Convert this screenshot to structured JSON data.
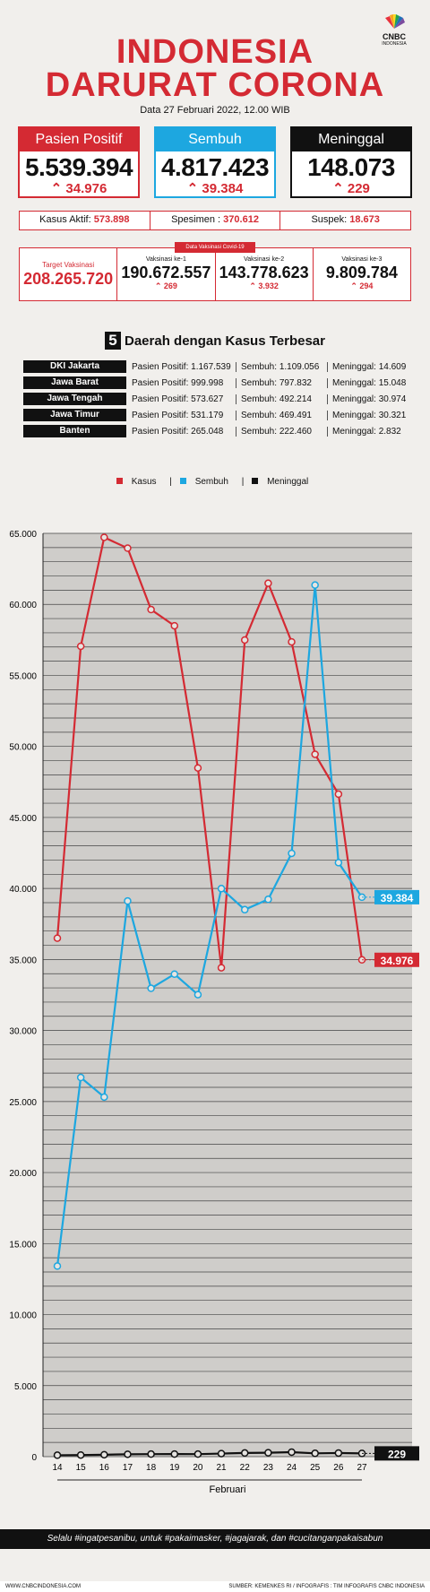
{
  "header": {
    "title_line1": "INDONESIA",
    "title_line2": "DARURAT CORONA",
    "date": "Data 27 Februari 2022, 12.00 WIB",
    "logo_text": "CNBC",
    "logo_sub": "INDONESIA"
  },
  "cards": [
    {
      "label": "Pasien Positif",
      "value": "5.539.394",
      "increase": "34.976",
      "color": "#d42a33"
    },
    {
      "label": "Sembuh",
      "value": "4.817.423",
      "increase": "39.384",
      "color": "#1da7e0"
    },
    {
      "label": "Meninggal",
      "value": "148.073",
      "increase": "229",
      "color": "#111111"
    }
  ],
  "stats": {
    "kasus_aktif_label": "Kasus Aktif:",
    "kasus_aktif": "573.898",
    "spesimen_label": "Spesimen :",
    "spesimen": "370.612",
    "suspek_label": "Suspek:",
    "suspek": "18.673"
  },
  "vaccination": {
    "header": "Data Vaksinasi Covid-19",
    "target_label": "Target Vaksinasi",
    "target": "208.265.720",
    "items": [
      {
        "label": "Vaksinasi ke-1",
        "value": "190.672.557",
        "increase": "269"
      },
      {
        "label": "Vaksinasi ke-2",
        "value": "143.778.623",
        "increase": "3.932"
      },
      {
        "label": "Vaksinasi ke-3",
        "value": "9.809.784",
        "increase": "294"
      }
    ]
  },
  "regions": {
    "number": "5",
    "title": "Daerah dengan Kasus Terbesar",
    "rows": [
      {
        "name": "DKI Jakarta",
        "positif_label": "Pasien Positif:",
        "positif": "1.167.539",
        "sembuh_label": "Sembuh:",
        "sembuh": "1.109.056",
        "meninggal_label": "Meninggal:",
        "meninggal": "14.609"
      },
      {
        "name": "Jawa Barat",
        "positif_label": "Pasien Positif:",
        "positif": "999.998",
        "sembuh_label": "Sembuh:",
        "sembuh": "797.832",
        "meninggal_label": "Meninggal:",
        "meninggal": "15.048"
      },
      {
        "name": "Jawa Tengah",
        "positif_label": "Pasien Positif:",
        "positif": "573.627",
        "sembuh_label": "Sembuh:",
        "sembuh": "492.214",
        "meninggal_label": "Meninggal:",
        "meninggal": "30.974"
      },
      {
        "name": "Jawa Timur",
        "positif_label": "Pasien Positif:",
        "positif": "531.179",
        "sembuh_label": "Sembuh:",
        "sembuh": "469.491",
        "meninggal_label": "Meninggal:",
        "meninggal": "30.321"
      },
      {
        "name": "Banten",
        "positif_label": "Pasien Positif:",
        "positif": "265.048",
        "sembuh_label": "Sembuh:",
        "sembuh": "222.460",
        "meninggal_label": "Meninggal:",
        "meninggal": "2.832"
      }
    ]
  },
  "chart_data": {
    "type": "line",
    "x": [
      "14",
      "15",
      "16",
      "17",
      "18",
      "19",
      "20",
      "21",
      "22",
      "23",
      "24",
      "25",
      "26",
      "27"
    ],
    "xlabel": "Februari",
    "ylim": [
      0,
      65000
    ],
    "yticks": [
      0,
      5000,
      10000,
      15000,
      20000,
      25000,
      30000,
      35000,
      40000,
      45000,
      50000,
      55000,
      60000,
      65000
    ],
    "ytick_labels": [
      "0",
      "5.000",
      "10.000",
      "15.000",
      "20.000",
      "25.000",
      "30.000",
      "35.000",
      "40.000",
      "45.000",
      "50.000",
      "55.000",
      "60.000",
      "65.000"
    ],
    "series": [
      {
        "name": "Kasus",
        "color": "#d42a33",
        "values": [
          36501,
          57049,
          64718,
          63956,
          59635,
          58495,
          48484,
          34418,
          57491,
          61488,
          57358,
          49447,
          46643,
          34976
        ],
        "end_label": "34.976"
      },
      {
        "name": "Sembuh",
        "color": "#1da7e0",
        "values": [
          13416,
          26691,
          25316,
          39115,
          32971,
          33970,
          32526,
          39990,
          38507,
          39236,
          42472,
          61361,
          41817,
          39384
        ],
        "end_label": "39.384"
      },
      {
        "name": "Meninggal",
        "color": "#111111",
        "values": [
          100,
          111,
          135,
          167,
          179,
          181,
          179,
          216,
          258,
          276,
          317,
          234,
          255,
          229
        ],
        "end_label": "229"
      }
    ],
    "legend_position": "top-center",
    "grid": true
  },
  "footer": {
    "tagline": "Selalu #ingatpesanibu, untuk #pakaimasker, #jagajarak, dan #cucitanganpakaisabun",
    "website": "WWW.CNBCINDONESIA.COM",
    "source": "SUMBER: KEMENKES RI / INFOGRAFIS : TIM INFOGRAFIS CNBC INDONESIA"
  }
}
